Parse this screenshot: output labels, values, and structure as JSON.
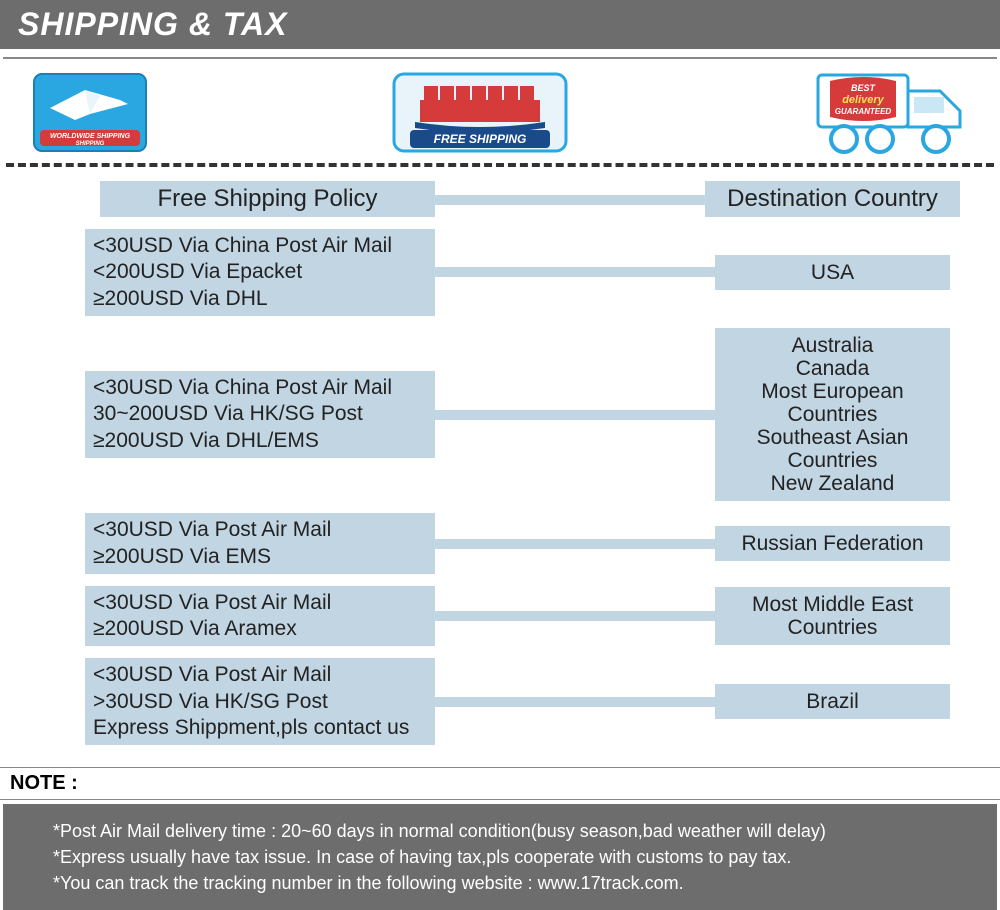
{
  "header": {
    "title": "SHIPPING & TAX"
  },
  "icons": {
    "worldwide_label": "WORLDWIDE SHIPPING",
    "freeship_label": "FREE SHIPPING",
    "delivery_badge_top": "BEST",
    "delivery_badge_mid": "delivery",
    "delivery_badge_bot": "GUARANTEED"
  },
  "columns": {
    "left_header": "Free Shipping Policy",
    "right_header": "Destination Country"
  },
  "rows": [
    {
      "policy": [
        "<30USD Via China Post Air Mail",
        "<200USD Via Epacket",
        "≥200USD Via DHL"
      ],
      "dest": [
        "USA"
      ]
    },
    {
      "policy": [
        "<30USD Via China Post Air Mail",
        "30~200USD Via HK/SG Post",
        "≥200USD Via DHL/EMS"
      ],
      "dest": [
        "Australia",
        "Canada",
        "Most European Countries",
        "Southeast Asian Countries",
        "New Zealand"
      ]
    },
    {
      "policy": [
        "<30USD Via Post Air Mail",
        "≥200USD Via EMS"
      ],
      "dest": [
        "Russian Federation"
      ]
    },
    {
      "policy": [
        "<30USD Via Post Air Mail",
        "≥200USD Via Aramex"
      ],
      "dest": [
        "Most Middle East Countries"
      ]
    },
    {
      "policy": [
        "<30USD Via Post Air Mail",
        ">30USD Via HK/SG Post",
        "Express Shippment,pls contact us"
      ],
      "dest": [
        "Brazil"
      ]
    }
  ],
  "note": {
    "label": "NOTE :",
    "lines": [
      "*Post Air Mail delivery time : 20~60 days in normal condition(busy season,bad weather will delay)",
      "*Express usually have tax issue. In case of having tax,pls cooperate with customs to pay tax.",
      "*You can track the tracking number in the following website : www.17track.com."
    ]
  },
  "colors": {
    "header_bg": "#6d6d6d",
    "cell_bg": "#c1d5e3",
    "text": "#222222",
    "white": "#ffffff",
    "icon_blue": "#2aa7e0",
    "icon_red": "#d63b3b",
    "icon_navy": "#1b4a8a"
  }
}
